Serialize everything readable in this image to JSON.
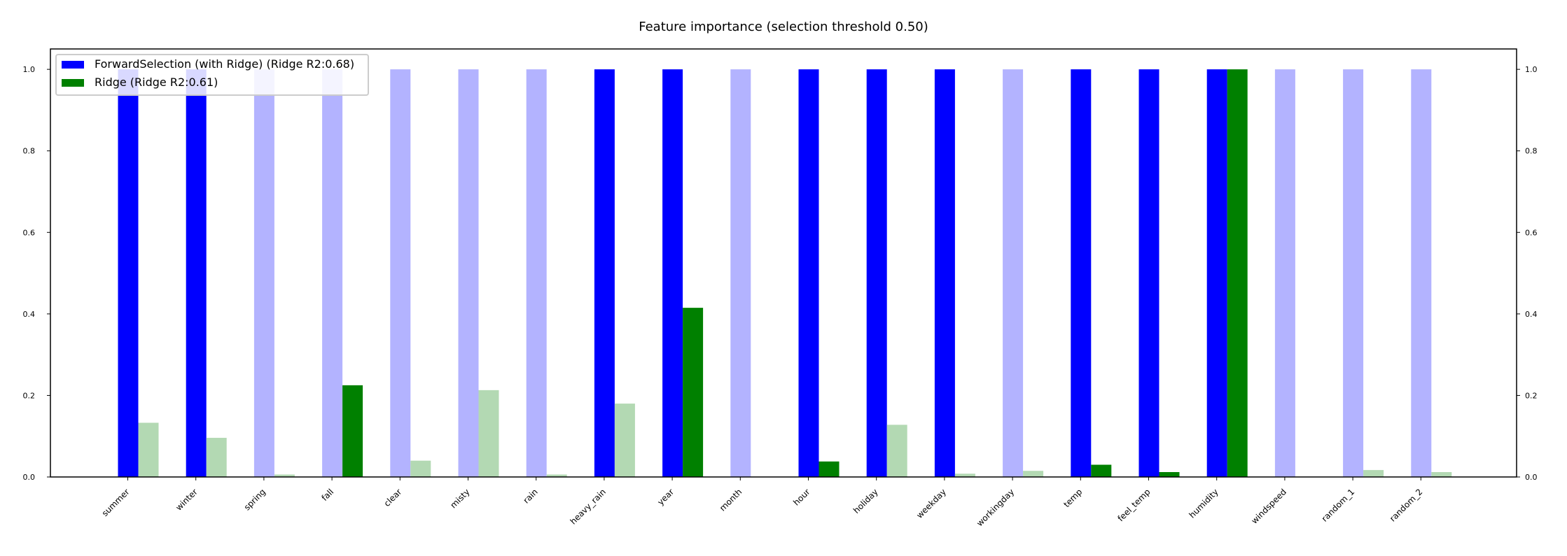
{
  "chart_data": {
    "type": "bar",
    "title": "Feature importance (selection threshold 0.50)",
    "xlabel": "",
    "ylabel": "",
    "ylim": [
      0.0,
      1.05
    ],
    "yticks": [
      "0.0",
      "0.2",
      "0.4",
      "0.6",
      "0.8",
      "1.0"
    ],
    "grid": false,
    "legend_position": "top-left",
    "categories": [
      "summer",
      "winter",
      "spring",
      "fall",
      "clear",
      "misty",
      "rain",
      "heavy_rain",
      "year",
      "month",
      "hour",
      "holiday",
      "weekday",
      "workingday",
      "temp",
      "feel_temp",
      "humidity",
      "windspeed",
      "random_1",
      "random_2"
    ],
    "series": [
      {
        "name": "ForwardSelection (with Ridge) (Ridge R2:0.68)",
        "color": "#0000ff",
        "faded_color": "#b3b3ff",
        "values": [
          1.0,
          1.0,
          1.0,
          1.0,
          1.0,
          1.0,
          1.0,
          1.0,
          1.0,
          1.0,
          1.0,
          1.0,
          1.0,
          1.0,
          1.0,
          1.0,
          1.0,
          1.0,
          1.0,
          1.0
        ],
        "selected": [
          true,
          true,
          false,
          false,
          false,
          false,
          false,
          true,
          true,
          false,
          true,
          true,
          true,
          false,
          true,
          true,
          true,
          false,
          false,
          false
        ]
      },
      {
        "name": "Ridge (Ridge R2:0.61)",
        "color": "#008000",
        "faded_color": "#b3d9b3",
        "values": [
          0.133,
          0.096,
          0.006,
          0.225,
          0.04,
          0.213,
          0.006,
          0.18,
          0.415,
          0.0,
          0.038,
          0.128,
          0.008,
          0.015,
          0.03,
          0.012,
          1.0,
          0.0,
          0.017,
          0.012
        ],
        "selected": [
          false,
          false,
          false,
          true,
          false,
          false,
          false,
          false,
          true,
          false,
          true,
          false,
          false,
          false,
          true,
          true,
          true,
          false,
          false,
          false
        ]
      }
    ]
  }
}
